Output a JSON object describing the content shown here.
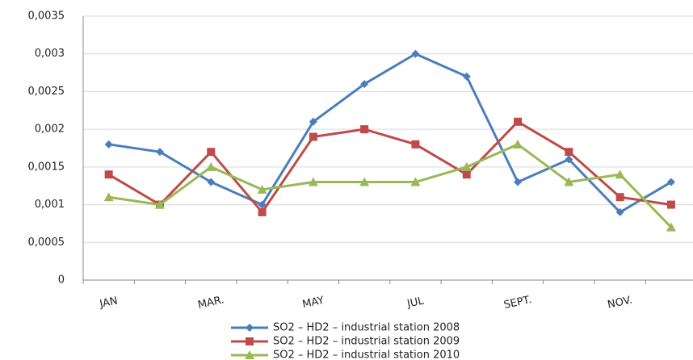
{
  "chart_data": {
    "type": "line",
    "categories": [
      "JAN",
      null,
      "MAR.",
      null,
      "MAY",
      null,
      "JUL",
      null,
      "SEPT.",
      null,
      "NOV.",
      null
    ],
    "series": [
      {
        "name": "SO2 – HD2 – industrial station 2008",
        "color": "#4a7ebb",
        "marker": "diamond",
        "values": [
          0.0018,
          0.0017,
          0.0013,
          0.001,
          0.0021,
          0.0026,
          0.003,
          0.0027,
          0.0013,
          0.0016,
          0.0009,
          0.0013
        ]
      },
      {
        "name": "SO2 – HD2 – industrial station 2009",
        "color": "#be4b48",
        "marker": "square",
        "values": [
          0.0014,
          0.001,
          0.0017,
          0.0009,
          0.0019,
          0.002,
          0.0018,
          0.0014,
          0.0021,
          0.0017,
          0.0011,
          0.001
        ]
      },
      {
        "name": "SO2 – HD2 – industrial station 2010",
        "color": "#98b954",
        "marker": "triangle",
        "values": [
          0.0011,
          0.001,
          0.0015,
          0.0012,
          0.0013,
          0.0013,
          0.0013,
          0.0015,
          0.0018,
          0.0013,
          0.0014,
          0.0007
        ]
      }
    ],
    "ylim": [
      0,
      0.0035
    ],
    "yticks": [
      0,
      {
        "value": 0.0005,
        "label": "0,0005"
      },
      {
        "value": 0.001,
        "label": "0,001"
      },
      {
        "value": 0.0015,
        "label": "0,0015"
      },
      {
        "value": 0.002,
        "label": "0,002"
      },
      {
        "value": 0.0025,
        "label": "0,0025"
      },
      {
        "value": 0.003,
        "label": "0,003"
      },
      {
        "value": 0.0035,
        "label": "0,0035"
      }
    ],
    "grid": true,
    "legend": "bottom"
  }
}
